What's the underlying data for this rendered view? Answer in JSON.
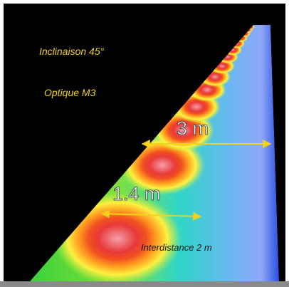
{
  "annotations": {
    "inclination": "Inclinaison 45°",
    "optics": "Optique M3",
    "road_width": "3 m",
    "offset": "1.4 m",
    "spacing": "Interdistance 2 m"
  }
}
